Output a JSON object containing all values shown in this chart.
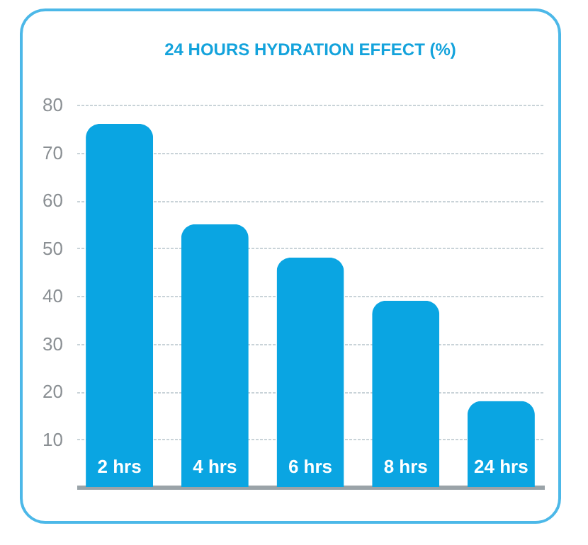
{
  "chart_data": {
    "type": "bar",
    "title": "24 HOURS HYDRATION EFFECT (%)",
    "categories": [
      "2 hrs",
      "4 hrs",
      "6 hrs",
      "8 hrs",
      "24 hrs"
    ],
    "values": [
      76,
      55,
      48,
      39,
      18
    ],
    "color": "#0aa5e2",
    "ylim": [
      0,
      80
    ],
    "yticks": [
      10,
      20,
      30,
      40,
      50,
      60,
      70,
      80
    ],
    "grid": "y"
  }
}
